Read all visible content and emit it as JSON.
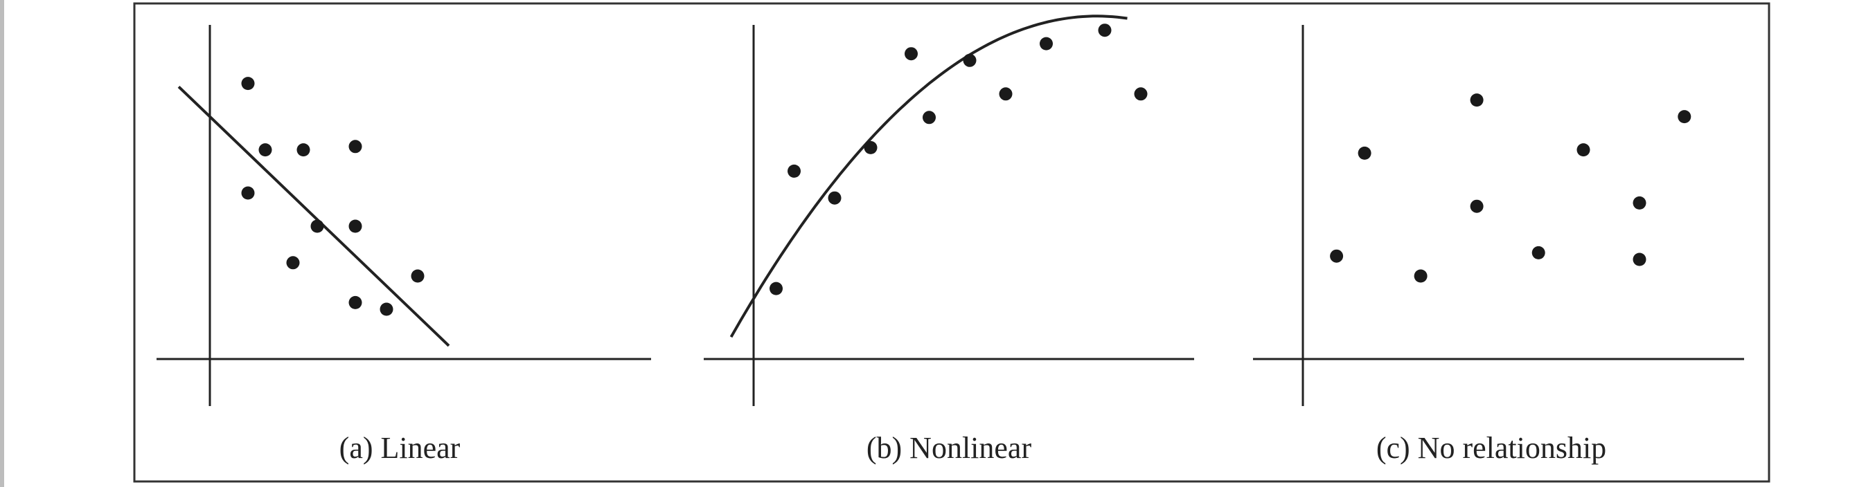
{
  "chart_data": [
    {
      "type": "scatter",
      "caption": "(a) Linear",
      "xlim": [
        0,
        10
      ],
      "ylim": [
        0,
        10
      ],
      "grid": false,
      "points": [
        {
          "x": 1.1,
          "y": 8.3
        },
        {
          "x": 1.6,
          "y": 6.3
        },
        {
          "x": 2.7,
          "y": 6.3
        },
        {
          "x": 4.2,
          "y": 6.4
        },
        {
          "x": 1.1,
          "y": 5.0
        },
        {
          "x": 3.1,
          "y": 4.0
        },
        {
          "x": 4.2,
          "y": 4.0
        },
        {
          "x": 2.4,
          "y": 2.9
        },
        {
          "x": 6.0,
          "y": 2.5
        },
        {
          "x": 4.2,
          "y": 1.7
        },
        {
          "x": 5.1,
          "y": 1.5
        }
      ],
      "fit": {
        "kind": "line",
        "slope": -1.0,
        "intercept": 7.3
      }
    },
    {
      "type": "scatter",
      "caption": "(b) Nonlinear",
      "xlim": [
        0,
        10
      ],
      "ylim": [
        0,
        10
      ],
      "grid": false,
      "points": [
        {
          "x": 0.5,
          "y": 2.1
        },
        {
          "x": 0.9,
          "y": 5.6
        },
        {
          "x": 1.8,
          "y": 4.8
        },
        {
          "x": 2.6,
          "y": 6.3
        },
        {
          "x": 3.5,
          "y": 9.1
        },
        {
          "x": 3.9,
          "y": 7.2
        },
        {
          "x": 4.8,
          "y": 8.9
        },
        {
          "x": 5.6,
          "y": 7.9
        },
        {
          "x": 6.5,
          "y": 9.4
        },
        {
          "x": 7.8,
          "y": 9.8
        },
        {
          "x": 8.6,
          "y": 7.9
        }
      ],
      "fit": {
        "kind": "quadratic",
        "a": -0.145,
        "b": 2.21,
        "c": 1.8,
        "x_range": [
          -0.5,
          8.3
        ]
      }
    },
    {
      "type": "scatter",
      "caption": "(c) No relationship",
      "xlim": [
        0,
        10
      ],
      "ylim": [
        0,
        10
      ],
      "grid": false,
      "points": [
        {
          "x": 0.6,
          "y": 3.1
        },
        {
          "x": 1.1,
          "y": 6.2
        },
        {
          "x": 2.1,
          "y": 2.5
        },
        {
          "x": 3.1,
          "y": 7.8
        },
        {
          "x": 3.1,
          "y": 4.6
        },
        {
          "x": 4.2,
          "y": 3.2
        },
        {
          "x": 5.0,
          "y": 6.3
        },
        {
          "x": 6.0,
          "y": 4.7
        },
        {
          "x": 6.0,
          "y": 3.0
        },
        {
          "x": 6.8,
          "y": 7.3
        }
      ]
    }
  ]
}
